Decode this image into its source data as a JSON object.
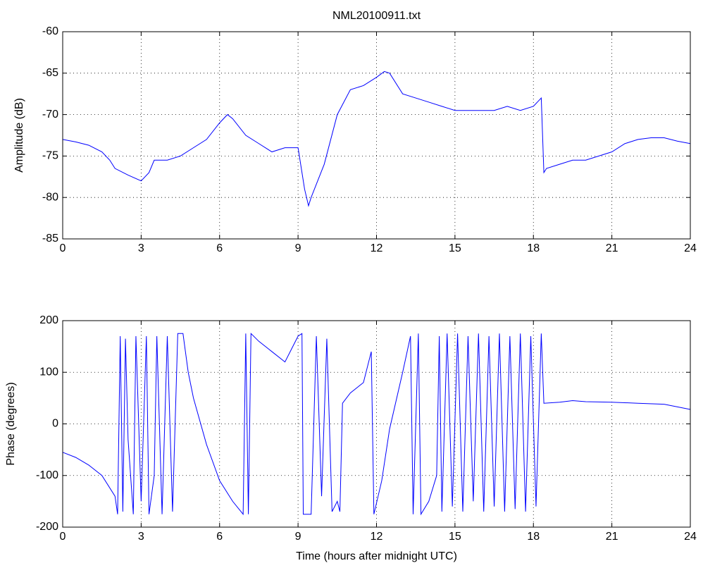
{
  "chart_data": [
    {
      "type": "line",
      "title": "NML20100911.txt",
      "y_label": "Amplitude (dB)",
      "xlim": [
        0,
        24
      ],
      "xticks": [
        0,
        3,
        6,
        9,
        12,
        15,
        18,
        21,
        24
      ],
      "ylim": [
        -85,
        -60
      ],
      "yticks": [
        -85,
        -80,
        -75,
        -70,
        -65,
        -60
      ],
      "grid": true,
      "x": [
        0,
        0.5,
        1,
        1.5,
        1.8,
        2,
        2.5,
        3,
        3.3,
        3.5,
        4,
        4.5,
        5,
        5.5,
        6,
        6.3,
        6.5,
        7,
        7.5,
        8,
        8.5,
        9,
        9.25,
        9.4,
        9.5,
        10,
        10.5,
        11,
        11.5,
        12,
        12.3,
        12.5,
        13,
        13.5,
        14,
        14.5,
        15,
        15.5,
        16,
        16.5,
        17,
        17.5,
        18,
        18.3,
        18.4,
        18.5,
        19,
        19.5,
        20,
        20.5,
        21,
        21.5,
        22,
        22.5,
        23,
        23.5,
        24
      ],
      "series": [
        {
          "color": "#0000ff",
          "values": [
            -73,
            -73.3,
            -73.7,
            -74.5,
            -75.5,
            -76.5,
            -77.3,
            -78,
            -77,
            -75.5,
            -75.5,
            -75,
            -74,
            -73,
            -71,
            -70,
            -70.5,
            -72.5,
            -73.5,
            -74.5,
            -74,
            -74,
            -79,
            -81,
            -80,
            -76,
            -70,
            -67,
            -66.5,
            -65.5,
            -64.8,
            -65,
            -67.5,
            -68,
            -68.5,
            -69,
            -69.5,
            -69.5,
            -69.5,
            -69.5,
            -69,
            -69.5,
            -69,
            -68,
            -77,
            -76.5,
            -76,
            -75.5,
            -75.5,
            -75,
            -74.5,
            -73.5,
            -73,
            -72.8,
            -72.8,
            -73.2,
            -73.5
          ]
        }
      ]
    },
    {
      "type": "line",
      "x_label": "Time (hours after midnight UTC)",
      "y_label": "Phase (degrees)",
      "xlim": [
        0,
        24
      ],
      "xticks": [
        0,
        3,
        6,
        9,
        12,
        15,
        18,
        21,
        24
      ],
      "ylim": [
        -200,
        200
      ],
      "yticks": [
        -200,
        -100,
        0,
        100,
        200
      ],
      "grid": true,
      "x": [
        0,
        0.5,
        1,
        1.5,
        2,
        2.1,
        2.2,
        2.3,
        2.4,
        2.5,
        2.7,
        2.8,
        3.0,
        3.2,
        3.3,
        3.5,
        3.6,
        3.8,
        4.0,
        4.2,
        4.4,
        4.6,
        4.8,
        5.0,
        5.5,
        6,
        6.5,
        6.9,
        7.0,
        7.1,
        7.2,
        7.5,
        8,
        8.5,
        9,
        9.15,
        9.2,
        9.5,
        9.7,
        9.9,
        10.1,
        10.3,
        10.5,
        10.6,
        10.7,
        11,
        11.5,
        11.8,
        11.9,
        12.2,
        12.5,
        13,
        13.3,
        13.4,
        13.6,
        13.7,
        14,
        14.3,
        14.4,
        14.5,
        14.7,
        14.9,
        15.1,
        15.3,
        15.5,
        15.7,
        15.9,
        16.1,
        16.3,
        16.5,
        16.7,
        16.9,
        17.1,
        17.3,
        17.5,
        17.7,
        17.9,
        18.1,
        18.3,
        18.4,
        19,
        19.5,
        20,
        21,
        22,
        23,
        24
      ],
      "series": [
        {
          "color": "#0000ff",
          "values": [
            -55,
            -65,
            -80,
            -100,
            -140,
            -175,
            170,
            -170,
            165,
            -30,
            -175,
            170,
            -150,
            170,
            -175,
            -100,
            170,
            -175,
            170,
            -170,
            175,
            175,
            100,
            50,
            -40,
            -110,
            -150,
            -175,
            175,
            -175,
            175,
            160,
            140,
            120,
            170,
            175,
            -175,
            -175,
            170,
            -140,
            165,
            -170,
            -150,
            -170,
            40,
            60,
            80,
            140,
            -175,
            -110,
            -10,
            100,
            170,
            -175,
            175,
            -175,
            -150,
            -100,
            170,
            -170,
            175,
            -160,
            175,
            -170,
            170,
            -150,
            175,
            -170,
            170,
            -160,
            175,
            -170,
            170,
            -165,
            175,
            -170,
            170,
            -160,
            175,
            40,
            42,
            45,
            43,
            42,
            40,
            38,
            28
          ]
        }
      ]
    }
  ]
}
